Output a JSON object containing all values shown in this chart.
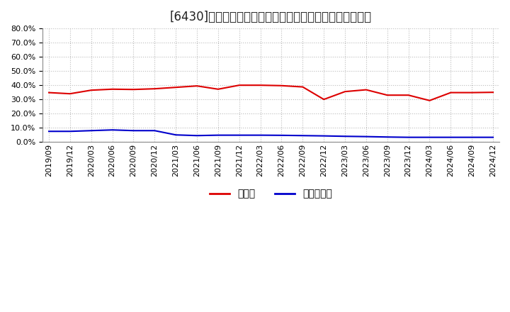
{
  "title": "[6430]　現预金、有利子負債の総資産に対する比率の推移",
  "x_labels": [
    "2019/09",
    "2019/12",
    "2020/03",
    "2020/06",
    "2020/09",
    "2020/12",
    "2021/03",
    "2021/06",
    "2021/09",
    "2021/12",
    "2022/03",
    "2022/06",
    "2022/09",
    "2022/12",
    "2023/03",
    "2023/06",
    "2023/09",
    "2023/12",
    "2024/03",
    "2024/06",
    "2024/09",
    "2024/12"
  ],
  "cash": [
    0.348,
    0.34,
    0.365,
    0.372,
    0.37,
    0.375,
    0.385,
    0.395,
    0.372,
    0.4,
    0.4,
    0.397,
    0.388,
    0.3,
    0.355,
    0.368,
    0.33,
    0.33,
    0.292,
    0.348,
    0.348,
    0.35
  ],
  "debt": [
    0.075,
    0.075,
    0.08,
    0.085,
    0.08,
    0.08,
    0.05,
    0.045,
    0.048,
    0.048,
    0.048,
    0.047,
    0.045,
    0.043,
    0.04,
    0.038,
    0.035,
    0.033,
    0.033,
    0.033,
    0.033,
    0.033
  ],
  "cash_color": "#dd0000",
  "debt_color": "#0000cc",
  "ylim": [
    0.0,
    0.8
  ],
  "yticks": [
    0.0,
    0.1,
    0.2,
    0.3,
    0.4,
    0.5,
    0.6,
    0.7,
    0.8
  ],
  "legend_cash": "現预金",
  "legend_debt": "有利子負債",
  "bg_color": "#ffffff",
  "plot_bg_color": "#ffffff",
  "grid_color": "#aaaaaa",
  "title_fontsize": 12,
  "label_fontsize": 8,
  "legend_fontsize": 10
}
